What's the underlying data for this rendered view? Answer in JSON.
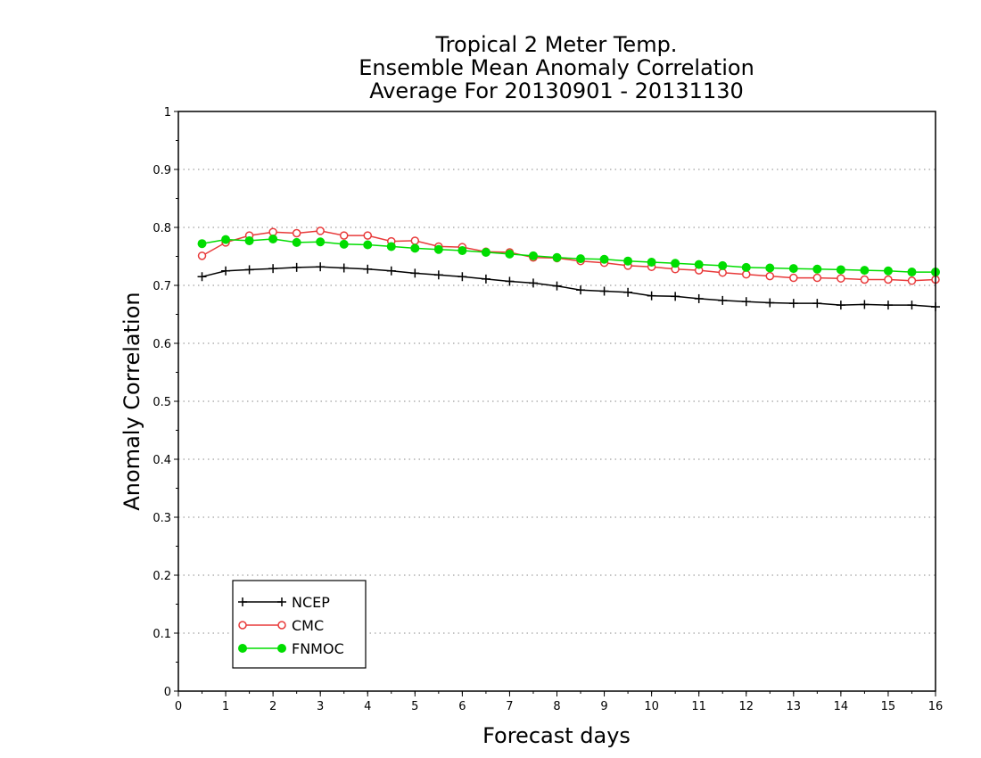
{
  "chart_data": {
    "type": "line",
    "title_lines": [
      "Tropical 2 Meter Temp.",
      "Ensemble Mean Anomaly Correlation",
      "Average For 20130901 - 20131130"
    ],
    "xlabel": "Forecast days",
    "ylabel": "Anomaly Correlation",
    "xlim": [
      0,
      16
    ],
    "ylim": [
      0,
      1
    ],
    "xticks": [
      "0",
      "1",
      "2",
      "3",
      "4",
      "5",
      "6",
      "7",
      "8",
      "9",
      "10",
      "11",
      "12",
      "13",
      "14",
      "15",
      "16"
    ],
    "yticks": [
      "0",
      "0.1",
      "0.2",
      "0.3",
      "0.4",
      "0.5",
      "0.6",
      "0.7",
      "0.8",
      "0.9",
      "1"
    ],
    "grid": "horizontal-dotted",
    "legend_position": "bottom-left",
    "x": [
      0.5,
      1,
      1.5,
      2,
      2.5,
      3,
      3.5,
      4,
      4.5,
      5,
      5.5,
      6,
      6.5,
      7,
      7.5,
      8,
      8.5,
      9,
      9.5,
      10,
      10.5,
      11,
      11.5,
      12,
      12.5,
      13,
      13.5,
      14,
      14.5,
      15,
      15.5,
      16
    ],
    "series": [
      {
        "name": "NCEP",
        "color": "#000000",
        "marker": "plus",
        "values": [
          0.715,
          0.725,
          0.727,
          0.729,
          0.731,
          0.732,
          0.73,
          0.728,
          0.725,
          0.721,
          0.718,
          0.715,
          0.711,
          0.707,
          0.704,
          0.699,
          0.692,
          0.69,
          0.688,
          0.682,
          0.681,
          0.677,
          0.674,
          0.672,
          0.67,
          0.669,
          0.669,
          0.666,
          0.667,
          0.666,
          0.666,
          0.663
        ]
      },
      {
        "name": "CMC",
        "color": "#e83a3a",
        "marker": "open-circle",
        "values": [
          0.751,
          0.774,
          0.786,
          0.792,
          0.79,
          0.794,
          0.786,
          0.786,
          0.776,
          0.777,
          0.767,
          0.766,
          0.758,
          0.757,
          0.748,
          0.747,
          0.742,
          0.739,
          0.734,
          0.732,
          0.728,
          0.726,
          0.722,
          0.719,
          0.716,
          0.713,
          0.713,
          0.712,
          0.71,
          0.71,
          0.708,
          0.71
        ]
      },
      {
        "name": "FNMOC",
        "color": "#00dd00",
        "marker": "filled-circle",
        "values": [
          0.772,
          0.779,
          0.777,
          0.78,
          0.774,
          0.775,
          0.771,
          0.77,
          0.767,
          0.764,
          0.762,
          0.76,
          0.757,
          0.754,
          0.751,
          0.748,
          0.746,
          0.745,
          0.742,
          0.74,
          0.738,
          0.736,
          0.734,
          0.731,
          0.73,
          0.729,
          0.728,
          0.727,
          0.726,
          0.725,
          0.723,
          0.723
        ]
      }
    ]
  }
}
